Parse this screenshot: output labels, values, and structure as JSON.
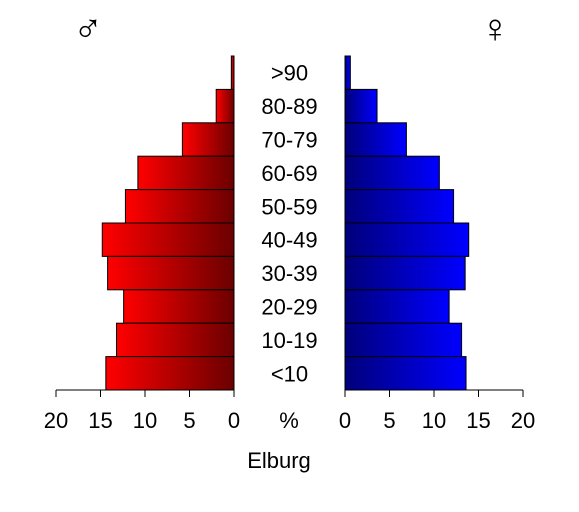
{
  "chart_data": {
    "type": "bar",
    "subtype": "population-pyramid",
    "title": "Elburg",
    "center_unit": "%",
    "categories": [
      ">90",
      "80-89",
      "70-79",
      "60-69",
      "50-59",
      "40-49",
      "30-39",
      "20-29",
      "10-19",
      "<10"
    ],
    "series": [
      {
        "name": "♂",
        "side": "left",
        "values": [
          0.3,
          2.0,
          5.8,
          10.8,
          12.2,
          14.8,
          14.2,
          12.4,
          13.2,
          14.4
        ],
        "color_light": "#ff0000",
        "color_dark": "#6b0000"
      },
      {
        "name": "♀",
        "side": "right",
        "values": [
          0.6,
          3.6,
          6.9,
          10.6,
          12.2,
          13.9,
          13.5,
          11.7,
          13.1,
          13.6
        ],
        "color_light": "#0000ff",
        "color_dark": "#00007a"
      }
    ],
    "xlim": [
      0,
      20
    ],
    "ticks": [
      "20",
      "15",
      "10",
      "5",
      "0"
    ],
    "ticks_right": [
      "0",
      "5",
      "10",
      "15",
      "20"
    ],
    "grid": false,
    "legend": "none"
  }
}
